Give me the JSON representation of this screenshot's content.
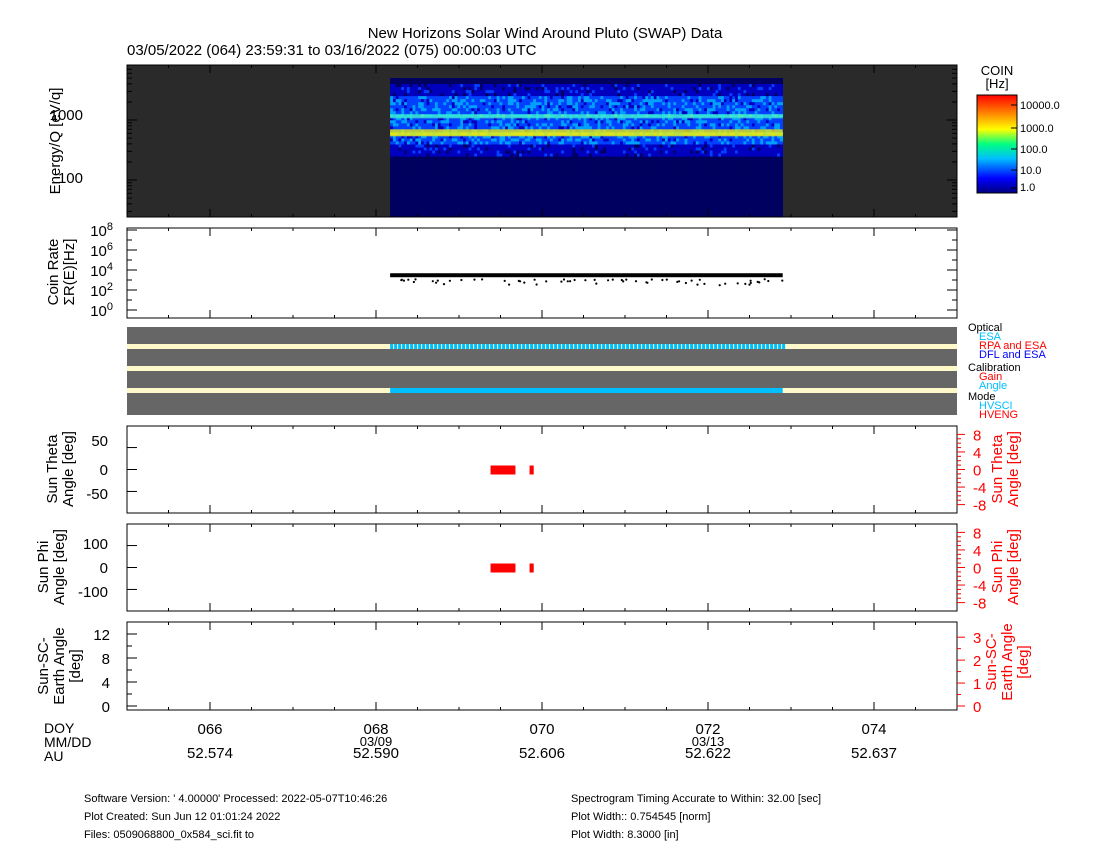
{
  "header": {
    "title": "New Horizons Solar Wind Around Pluto (SWAP) Data",
    "subtitle": "03/05/2022 (064) 23:59:31 to 03/16/2022 (075) 00:00:03 UTC"
  },
  "colorbar": {
    "title": "COIN",
    "unit": "[Hz]",
    "labels": [
      "10000.0",
      "1000.0",
      "100.0",
      "10.0",
      "1.0"
    ]
  },
  "time_axis": {
    "row_labels": [
      "DOY",
      "MM/DD",
      "AU"
    ],
    "doy": [
      "066",
      "068",
      "070",
      "072",
      "074"
    ],
    "mmdd": [
      "",
      "03/09",
      "",
      "03/13",
      ""
    ],
    "au": [
      "52.574",
      "52.590",
      "52.606",
      "52.622",
      "52.637"
    ]
  },
  "status_legend": {
    "optical": "Optical",
    "optical_items": [
      {
        "text": "ESA",
        "color": "#00bfff"
      },
      {
        "text": "RPA and ESA",
        "color": "#ff0000"
      },
      {
        "text": "DFL and ESA",
        "color": "#0000ff"
      }
    ],
    "calibration": "Calibration",
    "calibration_items": [
      {
        "text": "Gain",
        "color": "#ff0000"
      },
      {
        "text": "Angle",
        "color": "#00bfff"
      }
    ],
    "mode": "Mode",
    "mode_items": [
      {
        "text": "HVSCI",
        "color": "#00bfff"
      },
      {
        "text": "HVENG",
        "color": "#ff0000"
      }
    ]
  },
  "footer": {
    "left": [
      "Software Version:  ' 4.00000'  Processed: 2022-05-07T10:46:26",
      "Plot Created: Sun Jun 12 01:01:24 2022",
      "Files: 0509068800_0x584_sci.fit to"
    ],
    "right": [
      "Spectrogram Timing Accurate to Within: 32.00 [sec]",
      "Plot Width:: 0.754545 [norm]",
      "Plot Width: 8.3000 [in]"
    ]
  },
  "chart_data": [
    {
      "type": "heatmap",
      "title": "",
      "ylabel": "Energy/Q [eV/q]",
      "x_range_doy": [
        65.0,
        75.0
      ],
      "y_scale": "log",
      "y_ticks": [
        "100",
        "1000"
      ],
      "data_extent_doy": [
        68.17,
        72.9
      ],
      "bright_bands_ev": [
        600,
        1150
      ],
      "colorbar": "COIN [Hz]",
      "colormap": [
        "#000080",
        "#0000ff",
        "#00bfff",
        "#00ff80",
        "#ffff00",
        "#ff8000",
        "#ff0000"
      ]
    },
    {
      "type": "scatter",
      "title": "",
      "ylabel_line1": "Coin Rate",
      "ylabel_line2": "ΣR(E)[Hz]",
      "y_scale": "log",
      "y_ticks": [
        "10⁰",
        "10²",
        "10⁴",
        "10⁶",
        "10⁸"
      ],
      "ylim": [
        1,
        100000000
      ],
      "x_range_doy": [
        65.0,
        75.0
      ],
      "series": [
        {
          "x_start": 68.17,
          "x_end": 72.9,
          "typical_value": 3000,
          "min_value": 300
        }
      ]
    },
    {
      "type": "table",
      "title": "",
      "rows": [
        "Optical",
        "Calibration",
        "Mode"
      ],
      "x_range_doy": [
        65.0,
        75.0
      ],
      "active_doy": [
        68.17,
        72.9
      ],
      "colors": {
        "background": "#666666",
        "track": "#fff8c8",
        "active": "#00bfff"
      }
    },
    {
      "type": "scatter",
      "title": "",
      "ylabel_line1": "Sun Theta",
      "ylabel_line2": "Angle [deg]",
      "left_ticks": [
        "50",
        "0",
        "-50"
      ],
      "ylim_left": [
        -90,
        90
      ],
      "right_ticks": [
        "8",
        "4",
        "0",
        "-4",
        "-8"
      ],
      "right_label_line1": "Sun Theta",
      "right_label_line2": "Angle [deg]",
      "ylim_right": [
        -9,
        9
      ],
      "x_range_doy": [
        65.0,
        75.0
      ],
      "series": [
        {
          "x_start": 69.38,
          "x_end": 69.68,
          "value": 0
        },
        {
          "x_start": 69.85,
          "x_end": 69.9,
          "value": 0
        }
      ],
      "color": "#ff0000"
    },
    {
      "type": "scatter",
      "title": "",
      "ylabel_line1": "Sun Phi",
      "ylabel_line2": "Angle [deg]",
      "left_ticks": [
        "100",
        "0",
        "-100"
      ],
      "ylim_left": [
        -180,
        180
      ],
      "right_ticks": [
        "8",
        "4",
        "0",
        "-4",
        "-8"
      ],
      "right_label_line1": "Sun Phi",
      "right_label_line2": "Angle [deg]",
      "ylim_right": [
        -9,
        9
      ],
      "x_range_doy": [
        65.0,
        75.0
      ],
      "series": [
        {
          "x_start": 69.38,
          "x_end": 69.68,
          "value": 0
        },
        {
          "x_start": 69.85,
          "x_end": 69.9,
          "value": 0
        }
      ],
      "color": "#ff0000"
    },
    {
      "type": "line",
      "title": "",
      "ylabel_line1": "Sun-SC-",
      "ylabel_line2": "Earth Angle",
      "ylabel_line3": "[deg]",
      "left_ticks": [
        "12",
        "8",
        "4",
        "0"
      ],
      "ylim_left": [
        0,
        13
      ],
      "right_ticks": [
        "3",
        "2",
        "1",
        "0"
      ],
      "right_label_line1": "Sun-SC-",
      "right_label_line2": "Earth Angle",
      "right_label_line3": "[deg]",
      "ylim_right": [
        0,
        3.4
      ],
      "x_range_doy": [
        65.0,
        75.0
      ],
      "series": []
    }
  ]
}
